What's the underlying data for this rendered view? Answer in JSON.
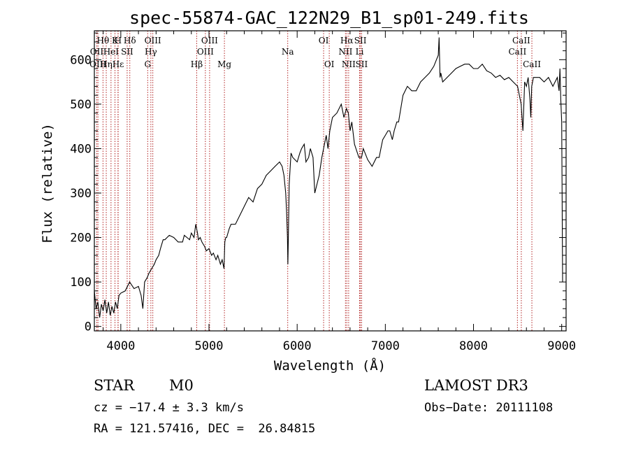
{
  "chart_data": {
    "type": "line",
    "title": "spec-55874-GAC_122N29_B1_sp01-249.fits",
    "xlabel": "Wavelength (Å)",
    "ylabel": "Flux (relative)",
    "xlim": [
      3700,
      9050
    ],
    "ylim": [
      -10,
      665
    ],
    "xticks": [
      4000,
      5000,
      6000,
      7000,
      8000,
      9000
    ],
    "yticks": [
      0,
      100,
      200,
      300,
      400,
      500,
      600
    ],
    "grid": false,
    "series": [
      {
        "name": "spectrum",
        "x": [
          3700,
          3720,
          3740,
          3760,
          3780,
          3800,
          3820,
          3840,
          3860,
          3880,
          3900,
          3920,
          3940,
          3960,
          3980,
          4000,
          4050,
          4100,
          4150,
          4200,
          4230,
          4250,
          4270,
          4300,
          4320,
          4350,
          4380,
          4400,
          4430,
          4450,
          4480,
          4500,
          4550,
          4600,
          4650,
          4700,
          4720,
          4750,
          4780,
          4800,
          4830,
          4850,
          4870,
          4880,
          4900,
          4920,
          4950,
          4970,
          5000,
          5030,
          5050,
          5080,
          5100,
          5130,
          5150,
          5170,
          5180,
          5190,
          5200,
          5230,
          5250,
          5300,
          5350,
          5400,
          5450,
          5500,
          5550,
          5600,
          5650,
          5700,
          5750,
          5800,
          5830,
          5850,
          5870,
          5880,
          5890,
          5895,
          5900,
          5910,
          5930,
          5950,
          6000,
          6030,
          6050,
          6080,
          6100,
          6130,
          6150,
          6180,
          6200,
          6250,
          6280,
          6300,
          6330,
          6350,
          6370,
          6400,
          6450,
          6500,
          6530,
          6560,
          6580,
          6600,
          6620,
          6650,
          6700,
          6730,
          6750,
          6800,
          6850,
          6900,
          6930,
          6950,
          6970,
          7000,
          7030,
          7050,
          7080,
          7100,
          7130,
          7150,
          7200,
          7250,
          7300,
          7350,
          7400,
          7450,
          7500,
          7550,
          7580,
          7600,
          7610,
          7620,
          7630,
          7650,
          7700,
          7750,
          7800,
          7850,
          7900,
          7950,
          8000,
          8050,
          8100,
          8150,
          8200,
          8250,
          8300,
          8350,
          8400,
          8450,
          8500,
          8520,
          8540,
          8550,
          8560,
          8580,
          8600,
          8620,
          8640,
          8650,
          8660,
          8680,
          8700,
          8750,
          8800,
          8850,
          8900,
          8950,
          8970,
          8980,
          8990,
          9000,
          9010
        ],
        "y": [
          80,
          40,
          55,
          20,
          50,
          35,
          60,
          30,
          55,
          25,
          45,
          30,
          55,
          40,
          70,
          75,
          80,
          100,
          85,
          90,
          70,
          40,
          100,
          110,
          120,
          130,
          140,
          150,
          160,
          175,
          195,
          195,
          205,
          200,
          190,
          190,
          205,
          200,
          195,
          210,
          200,
          230,
          210,
          195,
          200,
          190,
          180,
          170,
          175,
          160,
          165,
          150,
          160,
          140,
          150,
          130,
          190,
          200,
          200,
          220,
          230,
          230,
          250,
          270,
          290,
          280,
          310,
          320,
          340,
          350,
          360,
          370,
          360,
          340,
          300,
          260,
          200,
          140,
          200,
          320,
          390,
          380,
          370,
          390,
          400,
          410,
          370,
          380,
          400,
          380,
          300,
          340,
          380,
          400,
          430,
          400,
          440,
          470,
          480,
          500,
          470,
          490,
          480,
          440,
          460,
          410,
          380,
          380,
          400,
          375,
          360,
          380,
          380,
          400,
          420,
          430,
          440,
          440,
          420,
          440,
          460,
          460,
          520,
          540,
          530,
          530,
          550,
          560,
          570,
          585,
          600,
          610,
          650,
          560,
          570,
          550,
          560,
          570,
          580,
          585,
          590,
          590,
          580,
          580,
          590,
          575,
          570,
          560,
          565,
          555,
          560,
          550,
          540,
          520,
          500,
          470,
          440,
          550,
          540,
          560,
          510,
          470,
          540,
          560,
          560,
          560,
          550,
          560,
          540,
          560,
          530,
          580,
          510,
          460,
          100
        ]
      }
    ],
    "spectral_lines": [
      {
        "label": "Hθ",
        "row": 1,
        "x": 3798
      },
      {
        "label": "OII",
        "row": 2,
        "x": 3727
      },
      {
        "label": "OIII",
        "row": 3,
        "x": 3741
      },
      {
        "label": "K",
        "row": 1,
        "x": 3934
      },
      {
        "label": "H",
        "row": 1,
        "x": 3968
      },
      {
        "label": "Hη",
        "row": 3,
        "x": 3835
      },
      {
        "label": "HeI",
        "row": 2,
        "x": 3889
      },
      {
        "label": "SII",
        "row": 2,
        "x": 4072
      },
      {
        "label": "Hε",
        "row": 3,
        "x": 3970
      },
      {
        "label": "Hδ",
        "row": 1,
        "x": 4102
      },
      {
        "label": "OIII",
        "row": 1,
        "x": 4363
      },
      {
        "label": "Hγ",
        "row": 2,
        "x": 4341
      },
      {
        "label": "G",
        "row": 3,
        "x": 4305
      },
      {
        "label": "Hβ",
        "row": 3,
        "x": 4861
      },
      {
        "label": "OIII",
        "row": 1,
        "x": 5007
      },
      {
        "label": "OIII",
        "row": 2,
        "x": 4959
      },
      {
        "label": "Mg",
        "row": 3,
        "x": 5175
      },
      {
        "label": "Na",
        "row": 2,
        "x": 5893
      },
      {
        "label": "OI",
        "row": 1,
        "x": 6300
      },
      {
        "label": "OI",
        "row": 3,
        "x": 6364
      },
      {
        "label": "Hα",
        "row": 1,
        "x": 6563
      },
      {
        "label": "NII",
        "row": 2,
        "x": 6548
      },
      {
        "label": "NII",
        "row": 3,
        "x": 6584
      },
      {
        "label": "SII",
        "row": 1,
        "x": 6717
      },
      {
        "label": "Li",
        "row": 2,
        "x": 6708
      },
      {
        "label": "SII",
        "row": 3,
        "x": 6731
      },
      {
        "label": "CaII",
        "row": 1,
        "x": 8542
      },
      {
        "label": "CaII",
        "row": 2,
        "x": 8498
      },
      {
        "label": "CaII",
        "row": 3,
        "x": 8662
      }
    ]
  },
  "info": {
    "class": "STAR",
    "subclass": "M0",
    "survey": "LAMOST DR3",
    "cz": "cz = −17.4 ± 3.3 km/s",
    "obs_date": "Obs−Date: 20111108",
    "radec": "RA = 121.57416, DEC =  26.84815"
  },
  "colors": {
    "line": "#000000",
    "marker_lines": "#b22222"
  }
}
